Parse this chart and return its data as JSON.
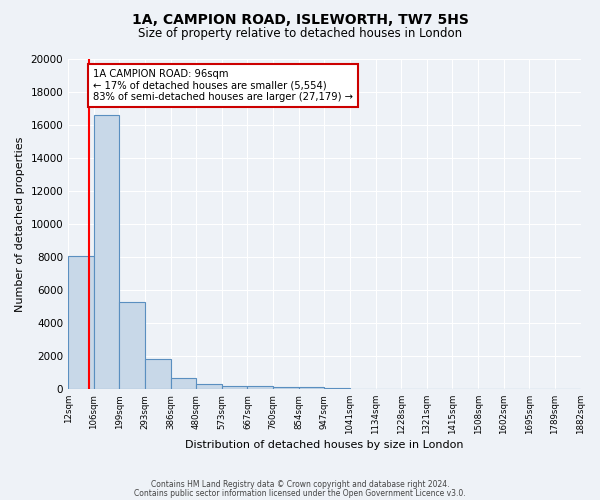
{
  "title1": "1A, CAMPION ROAD, ISLEWORTH, TW7 5HS",
  "title2": "Size of property relative to detached houses in London",
  "xlabel": "Distribution of detached houses by size in London",
  "ylabel": "Number of detached properties",
  "bin_labels": [
    "12sqm",
    "106sqm",
    "199sqm",
    "293sqm",
    "386sqm",
    "480sqm",
    "573sqm",
    "667sqm",
    "760sqm",
    "854sqm",
    "947sqm",
    "1041sqm",
    "1134sqm",
    "1228sqm",
    "1321sqm",
    "1415sqm",
    "1508sqm",
    "1602sqm",
    "1695sqm",
    "1789sqm",
    "1882sqm"
  ],
  "bar_heights": [
    8050,
    16600,
    5300,
    1850,
    700,
    300,
    220,
    200,
    160,
    140,
    60,
    30,
    20,
    10,
    5,
    5,
    5,
    5,
    5,
    5
  ],
  "bar_color": "#c8d8e8",
  "bar_edge_color": "#5a8fc0",
  "red_line_x": 0.82,
  "annotation_text": "1A CAMPION ROAD: 96sqm\n← 17% of detached houses are smaller (5,554)\n83% of semi-detached houses are larger (27,179) →",
  "annotation_box_color": "#ffffff",
  "annotation_box_edge": "#cc0000",
  "ylim": [
    0,
    20000
  ],
  "yticks": [
    0,
    2000,
    4000,
    6000,
    8000,
    10000,
    12000,
    14000,
    16000,
    18000,
    20000
  ],
  "footer1": "Contains HM Land Registry data © Crown copyright and database right 2024.",
  "footer2": "Contains public sector information licensed under the Open Government Licence v3.0.",
  "bg_color": "#eef2f7",
  "plot_bg_color": "#eef2f7",
  "grid_color": "#ffffff"
}
